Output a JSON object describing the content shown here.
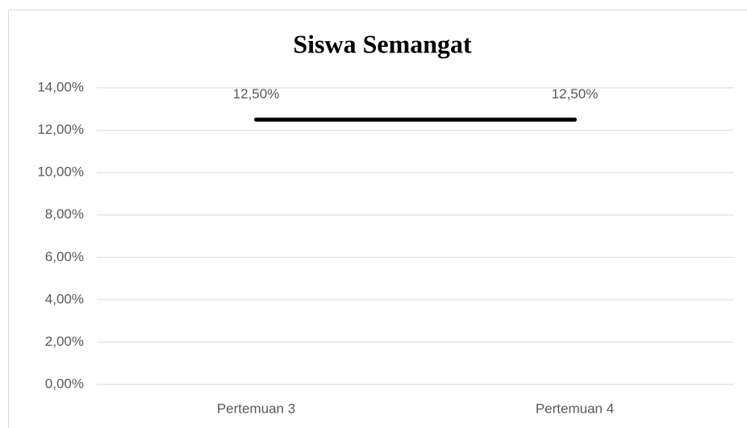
{
  "chart_data": {
    "type": "line",
    "title": "Siswa Semangat",
    "categories": [
      "Pertemuan 3",
      "Pertemuan 4"
    ],
    "values": [
      12.5,
      12.5
    ],
    "value_labels": [
      "12,50%",
      "12,50%"
    ],
    "color": "#000000",
    "ylim": [
      0,
      14
    ],
    "yticks": [
      {
        "value": 0,
        "label": "0,00%"
      },
      {
        "value": 2,
        "label": "2,00%"
      },
      {
        "value": 4,
        "label": "4,00%"
      },
      {
        "value": 6,
        "label": "6,00%"
      },
      {
        "value": 8,
        "label": "8,00%"
      },
      {
        "value": 10,
        "label": "10,00%"
      },
      {
        "value": 12,
        "label": "12,00%"
      },
      {
        "value": 14,
        "label": "14,00%"
      }
    ],
    "grid": true
  }
}
